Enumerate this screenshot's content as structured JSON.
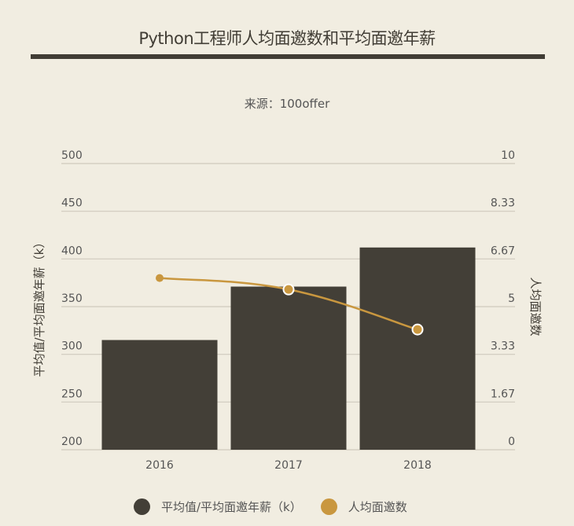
{
  "chart_data": {
    "type": "bar+line",
    "title": "Python工程师人均面邀数和平均面邀年薪",
    "subtitle": "来源：100offer",
    "categories": [
      "2016",
      "2017",
      "2018"
    ],
    "series": [
      {
        "name": "平均值/平均面邀年薪（k）",
        "type": "bar",
        "axis": "left",
        "values": [
          315,
          371,
          412
        ],
        "color": "#433f37"
      },
      {
        "name": "人均面邀数",
        "type": "line",
        "axis": "right",
        "smooth": true,
        "values": [
          6.0,
          5.6,
          4.2
        ],
        "color": "#c9973f"
      }
    ],
    "ylabel_left": "平均值/平均面邀年薪（k）",
    "ylabel_right": "人均面邀数",
    "ylim_left": [
      200,
      500
    ],
    "yticks_left": [
      "200",
      "250",
      "300",
      "350",
      "400",
      "450",
      "500"
    ],
    "ylim_right": [
      0,
      10
    ],
    "yticks_right": [
      "0",
      "1.67",
      "3.33",
      "5",
      "6.67",
      "8.33",
      "10"
    ],
    "grid": true,
    "legend": "bottom"
  }
}
